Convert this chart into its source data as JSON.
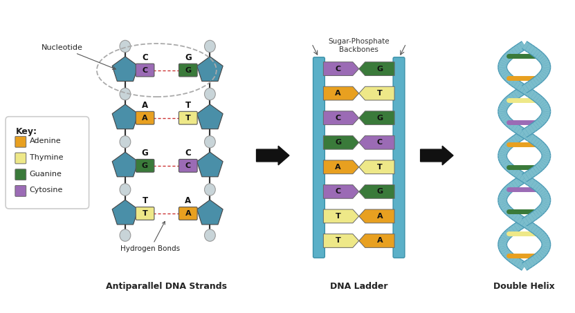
{
  "colors": {
    "adenine": "#E8A020",
    "thymine": "#EEE888",
    "guanine": "#3A7A3A",
    "cytosine": "#9B6BB5",
    "sugar": "#4A8FA8",
    "backbone": "#5BB0C8",
    "backbone_dark": "#3A90A8",
    "circle_fill": "#C8D4D8",
    "circle_edge": "#999999",
    "bg": "#FFFFFF",
    "hydrogen_bond": "#CC3333",
    "text_dark": "#222222",
    "line_dark": "#333333",
    "helix_blue": "#7BBDCC",
    "helix_dark": "#4A9AB0"
  },
  "base_pairs_left": [
    [
      "C",
      "G"
    ],
    [
      "A",
      "T"
    ],
    [
      "G",
      "C"
    ],
    [
      "T",
      "A"
    ]
  ],
  "ladder_pairs": [
    [
      "C",
      "G"
    ],
    [
      "A",
      "T"
    ],
    [
      "C",
      "G"
    ],
    [
      "G",
      "C"
    ],
    [
      "A",
      "T"
    ],
    [
      "C",
      "G"
    ],
    [
      "T",
      "A"
    ],
    [
      "T",
      "A"
    ]
  ],
  "title_left": "Antiparallel DNA Strands",
  "title_mid": "DNA Ladder",
  "title_right": "Double Helix",
  "label_nucleotide": "Nucleotide",
  "label_hydrogen": "Hydrogen Bonds",
  "label_backbone": "Sugar-Phosphate\nBackbones",
  "key_title": "Key:",
  "key_items": [
    "Adenine",
    "Thymine",
    "Guanine",
    "Cytosine"
  ]
}
